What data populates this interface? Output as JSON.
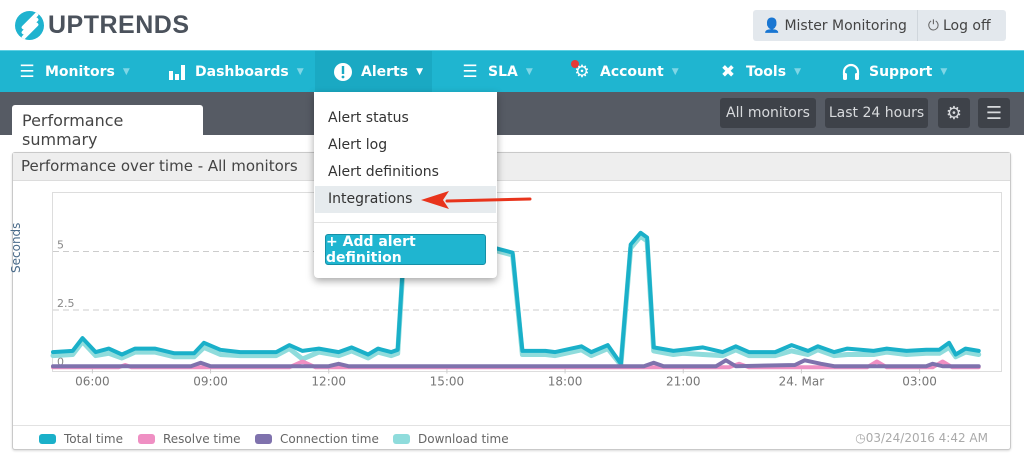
{
  "brand": {
    "name": "UPTRENDS"
  },
  "user": {
    "name": "Mister Monitoring",
    "logoff": "Log off"
  },
  "nav": [
    {
      "label": "Monitors",
      "icon": "list-icon"
    },
    {
      "label": "Dashboards",
      "icon": "bar-chart-icon"
    },
    {
      "label": "Alerts",
      "icon": "alert-icon",
      "active": true
    },
    {
      "label": "SLA",
      "icon": "checklist-icon"
    },
    {
      "label": "Account",
      "icon": "gear-icon",
      "badge": true
    },
    {
      "label": "Tools",
      "icon": "tools-icon"
    },
    {
      "label": "Support",
      "icon": "headset-icon"
    }
  ],
  "alerts_menu": {
    "items": [
      "Alert status",
      "Alert log",
      "Alert definitions",
      "Integrations"
    ],
    "highlighted": "Integrations",
    "add_button": "+ Add alert definition"
  },
  "tab": "Performance summary",
  "toolbar": {
    "monitors": "All monitors",
    "period": "Last 24 hours"
  },
  "panel": {
    "title": "Performance over time - All monitors",
    "timestamp": "03/24/2016 4:42 AM"
  },
  "colors": {
    "accent": "#1fb5d0",
    "total": "#1ab0c9",
    "resolve": "#ef8fc3",
    "connection": "#7f72ad",
    "download": "#8fdcdc",
    "arrow": "#e8341c"
  },
  "chart_data": {
    "type": "line",
    "ylabel": "Seconds",
    "ylim": [
      0,
      7.5
    ],
    "yticks": [
      {
        "v": 0,
        "label": "0"
      },
      {
        "v": 2.5,
        "label": "2.5"
      },
      {
        "v": 5,
        "label": "5"
      }
    ],
    "xlim": [
      "2016-03-23T05:00",
      "2016-03-24T05:04"
    ],
    "xticks": [
      {
        "t": "2016-03-23T06:00",
        "label": "06:00"
      },
      {
        "t": "2016-03-23T09:00",
        "label": "09:00"
      },
      {
        "t": "2016-03-23T12:00",
        "label": "12:00"
      },
      {
        "t": "2016-03-23T15:00",
        "label": "15:00"
      },
      {
        "t": "2016-03-23T18:00",
        "label": "18:00"
      },
      {
        "t": "2016-03-23T21:00",
        "label": "21:00"
      },
      {
        "t": "2016-03-24T00:00",
        "label": "24. Mar"
      },
      {
        "t": "2016-03-24T03:00",
        "label": "03:00"
      }
    ],
    "grid": "dashed horizontal",
    "legend": "bottom",
    "series": [
      {
        "name": "Total time",
        "color": "#1ab0c9",
        "points": [
          [
            "2016-03-23T05:00",
            0.7
          ],
          [
            "2016-03-23T05:30",
            0.75
          ],
          [
            "2016-03-23T05:45",
            1.3
          ],
          [
            "2016-03-23T06:05",
            0.7
          ],
          [
            "2016-03-23T06:25",
            0.85
          ],
          [
            "2016-03-23T06:45",
            0.6
          ],
          [
            "2016-03-23T07:05",
            0.85
          ],
          [
            "2016-03-23T07:35",
            0.85
          ],
          [
            "2016-03-23T08:05",
            0.65
          ],
          [
            "2016-03-23T08:35",
            0.65
          ],
          [
            "2016-03-23T08:50",
            1.1
          ],
          [
            "2016-03-23T09:15",
            0.8
          ],
          [
            "2016-03-23T09:45",
            0.7
          ],
          [
            "2016-03-23T10:15",
            0.7
          ],
          [
            "2016-03-23T10:40",
            0.7
          ],
          [
            "2016-03-23T11:00",
            1.0
          ],
          [
            "2016-03-23T11:20",
            0.75
          ],
          [
            "2016-03-23T11:45",
            0.85
          ],
          [
            "2016-03-23T12:15",
            0.7
          ],
          [
            "2016-03-23T12:35",
            0.9
          ],
          [
            "2016-03-23T13:00",
            0.6
          ],
          [
            "2016-03-23T13:15",
            0.85
          ],
          [
            "2016-03-23T13:35",
            0.7
          ],
          [
            "2016-03-23T13:45",
            0.8
          ],
          [
            "2016-03-23T13:55",
            5.3
          ],
          [
            "2016-03-23T15:00",
            5.3
          ],
          [
            "2016-03-23T16:00",
            5.25
          ],
          [
            "2016-03-23T16:40",
            4.95
          ],
          [
            "2016-03-23T16:55",
            0.75
          ],
          [
            "2016-03-23T17:30",
            0.75
          ],
          [
            "2016-03-23T17:45",
            0.7
          ],
          [
            "2016-03-23T18:25",
            0.95
          ],
          [
            "2016-03-23T18:40",
            0.7
          ],
          [
            "2016-03-23T19:05",
            1.0
          ],
          [
            "2016-03-23T19:25",
            0.2
          ],
          [
            "2016-03-23T19:40",
            5.3
          ],
          [
            "2016-03-23T19:55",
            5.8
          ],
          [
            "2016-03-23T20:05",
            5.6
          ],
          [
            "2016-03-23T20:15",
            0.9
          ],
          [
            "2016-03-23T20:45",
            0.75
          ],
          [
            "2016-03-23T21:00",
            0.8
          ],
          [
            "2016-03-23T21:30",
            0.9
          ],
          [
            "2016-03-23T22:00",
            0.7
          ],
          [
            "2016-03-23T22:20",
            0.95
          ],
          [
            "2016-03-23T22:40",
            0.7
          ],
          [
            "2016-03-23T23:20",
            0.7
          ],
          [
            "2016-03-23T23:45",
            1.0
          ],
          [
            "2016-03-24T00:10",
            0.75
          ],
          [
            "2016-03-24T00:25",
            0.95
          ],
          [
            "2016-03-24T00:50",
            0.7
          ],
          [
            "2016-03-24T01:10",
            0.85
          ],
          [
            "2016-03-24T01:50",
            0.75
          ],
          [
            "2016-03-24T02:10",
            0.85
          ],
          [
            "2016-03-24T02:40",
            0.75
          ],
          [
            "2016-03-24T03:10",
            0.8
          ],
          [
            "2016-03-24T03:30",
            0.8
          ],
          [
            "2016-03-24T03:45",
            1.1
          ],
          [
            "2016-03-24T03:55",
            0.6
          ],
          [
            "2016-03-24T04:10",
            0.85
          ],
          [
            "2016-03-24T04:30",
            0.75
          ]
        ]
      },
      {
        "name": "Resolve time",
        "color": "#ef8fc3",
        "points": [
          [
            "2016-03-23T05:00",
            0.05
          ],
          [
            "2016-03-23T06:40",
            0.05
          ],
          [
            "2016-03-23T06:50",
            0.15
          ],
          [
            "2016-03-23T07:00",
            0.05
          ],
          [
            "2016-03-23T11:00",
            0.05
          ],
          [
            "2016-03-23T11:20",
            0.3
          ],
          [
            "2016-03-23T11:40",
            0.05
          ],
          [
            "2016-03-23T22:10",
            0.05
          ],
          [
            "2016-03-23T22:25",
            0.2
          ],
          [
            "2016-03-23T22:40",
            0.05
          ],
          [
            "2016-03-24T01:40",
            0.05
          ],
          [
            "2016-03-24T01:55",
            0.3
          ],
          [
            "2016-03-24T02:10",
            0.05
          ],
          [
            "2016-03-24T03:20",
            0.05
          ],
          [
            "2016-03-24T03:35",
            0.3
          ],
          [
            "2016-03-24T03:50",
            0.05
          ],
          [
            "2016-03-24T04:30",
            0.05
          ]
        ]
      },
      {
        "name": "Connection time",
        "color": "#7f72ad",
        "points": [
          [
            "2016-03-23T05:00",
            0.1
          ],
          [
            "2016-03-23T08:30",
            0.1
          ],
          [
            "2016-03-23T08:45",
            0.25
          ],
          [
            "2016-03-23T09:00",
            0.1
          ],
          [
            "2016-03-23T12:00",
            0.1
          ],
          [
            "2016-03-23T12:15",
            0.2
          ],
          [
            "2016-03-23T12:30",
            0.1
          ],
          [
            "2016-03-23T20:00",
            0.1
          ],
          [
            "2016-03-23T20:15",
            0.25
          ],
          [
            "2016-03-23T20:30",
            0.1
          ],
          [
            "2016-03-23T21:50",
            0.1
          ],
          [
            "2016-03-23T22:05",
            0.35
          ],
          [
            "2016-03-23T22:20",
            0.1
          ],
          [
            "2016-03-23T23:50",
            0.15
          ],
          [
            "2016-03-24T00:05",
            0.35
          ],
          [
            "2016-03-24T00:30",
            0.2
          ],
          [
            "2016-03-24T00:50",
            0.1
          ],
          [
            "2016-03-24T03:10",
            0.1
          ],
          [
            "2016-03-24T03:20",
            0.2
          ],
          [
            "2016-03-24T03:35",
            0.1
          ],
          [
            "2016-03-24T04:30",
            0.1
          ]
        ]
      },
      {
        "name": "Download time",
        "color": "#8fdcdc",
        "points": [
          [
            "2016-03-23T05:00",
            0.55
          ],
          [
            "2016-03-23T05:30",
            0.6
          ],
          [
            "2016-03-23T05:45",
            1.15
          ],
          [
            "2016-03-23T06:05",
            0.55
          ],
          [
            "2016-03-23T06:25",
            0.65
          ],
          [
            "2016-03-23T06:45",
            0.45
          ],
          [
            "2016-03-23T07:05",
            0.7
          ],
          [
            "2016-03-23T07:35",
            0.7
          ],
          [
            "2016-03-23T08:05",
            0.5
          ],
          [
            "2016-03-23T08:35",
            0.5
          ],
          [
            "2016-03-23T08:50",
            0.9
          ],
          [
            "2016-03-23T09:15",
            0.6
          ],
          [
            "2016-03-23T09:45",
            0.55
          ],
          [
            "2016-03-23T10:15",
            0.55
          ],
          [
            "2016-03-23T10:40",
            0.55
          ],
          [
            "2016-03-23T11:00",
            0.85
          ],
          [
            "2016-03-23T11:20",
            0.4
          ],
          [
            "2016-03-23T11:45",
            0.7
          ],
          [
            "2016-03-23T12:15",
            0.55
          ],
          [
            "2016-03-23T12:35",
            0.75
          ],
          [
            "2016-03-23T13:00",
            0.45
          ],
          [
            "2016-03-23T13:15",
            0.7
          ],
          [
            "2016-03-23T13:35",
            0.55
          ],
          [
            "2016-03-23T13:45",
            0.65
          ],
          [
            "2016-03-23T13:55",
            5.15
          ],
          [
            "2016-03-23T15:00",
            5.2
          ],
          [
            "2016-03-23T16:00",
            5.15
          ],
          [
            "2016-03-23T16:40",
            4.85
          ],
          [
            "2016-03-23T16:55",
            0.6
          ],
          [
            "2016-03-23T17:30",
            0.6
          ],
          [
            "2016-03-23T17:45",
            0.55
          ],
          [
            "2016-03-23T18:25",
            0.8
          ],
          [
            "2016-03-23T18:40",
            0.55
          ],
          [
            "2016-03-23T19:05",
            0.85
          ],
          [
            "2016-03-23T19:25",
            0.15
          ],
          [
            "2016-03-23T19:40",
            5.15
          ],
          [
            "2016-03-23T19:55",
            5.65
          ],
          [
            "2016-03-23T20:05",
            5.45
          ],
          [
            "2016-03-23T20:15",
            0.75
          ],
          [
            "2016-03-23T20:45",
            0.6
          ],
          [
            "2016-03-23T21:00",
            0.65
          ],
          [
            "2016-03-23T21:30",
            0.6
          ],
          [
            "2016-03-23T22:00",
            0.55
          ],
          [
            "2016-03-23T22:20",
            0.8
          ],
          [
            "2016-03-23T22:40",
            0.55
          ],
          [
            "2016-03-23T23:20",
            0.55
          ],
          [
            "2016-03-23T23:45",
            0.75
          ],
          [
            "2016-03-24T00:10",
            0.6
          ],
          [
            "2016-03-24T00:25",
            0.8
          ],
          [
            "2016-03-24T00:50",
            0.55
          ],
          [
            "2016-03-24T01:10",
            0.6
          ],
          [
            "2016-03-24T01:50",
            0.6
          ],
          [
            "2016-03-24T02:10",
            0.7
          ],
          [
            "2016-03-24T02:40",
            0.6
          ],
          [
            "2016-03-24T03:10",
            0.65
          ],
          [
            "2016-03-24T03:30",
            0.65
          ],
          [
            "2016-03-24T03:45",
            0.9
          ],
          [
            "2016-03-24T03:55",
            0.5
          ],
          [
            "2016-03-24T04:10",
            0.7
          ],
          [
            "2016-03-24T04:30",
            0.6
          ]
        ]
      }
    ]
  }
}
